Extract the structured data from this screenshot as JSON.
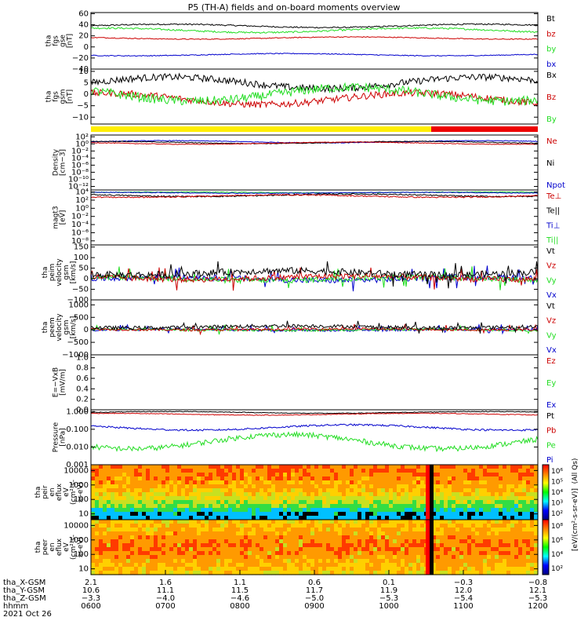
{
  "title": "P5 (TH-A) fields and on-board moments overview",
  "colors": {
    "black": "#000000",
    "red": "#cc0000",
    "green": "#22dd22",
    "blue": "#0000cc",
    "yellow": "#ffee00",
    "barred": "#ee0000"
  },
  "panels": [
    {
      "ylabel": [
        "tha",
        "fgs",
        "gse",
        "[nT]"
      ],
      "yticks": [
        "60",
        "40",
        "20",
        "0",
        "−20",
        "−40"
      ],
      "yvals": [
        60,
        40,
        20,
        0,
        -20,
        -40
      ],
      "ylim": [
        -40,
        62
      ],
      "log": false,
      "legend": [
        {
          "t": "Bt",
          "c": "black"
        },
        {
          "t": "bz",
          "c": "red"
        },
        {
          "t": "by",
          "c": "green"
        },
        {
          "t": "bx",
          "c": "blue"
        }
      ],
      "series": [
        {
          "c": "black",
          "base": 38,
          "amp": 3,
          "noise": 1.2
        },
        {
          "c": "green",
          "base": 30,
          "amp": 4,
          "noise": 1.5
        },
        {
          "c": "red",
          "base": 16,
          "amp": 2,
          "noise": 0.8
        },
        {
          "c": "blue",
          "base": -14,
          "amp": 2,
          "noise": 0.8
        }
      ]
    },
    {
      "ylabel": [
        "tha",
        "fgs",
        "gsm",
        "[nT]"
      ],
      "yticks": [
        "10",
        "5",
        "0",
        "−5",
        "−10"
      ],
      "yvals": [
        10,
        5,
        0,
        -5,
        -10
      ],
      "ylim": [
        -13,
        11
      ],
      "log": false,
      "legend": [
        {
          "t": "Bx",
          "c": "black"
        },
        {
          "t": "Bz",
          "c": "red"
        },
        {
          "t": "By",
          "c": "green"
        }
      ],
      "series": [
        {
          "c": "black",
          "base": 5,
          "amp": 2.5,
          "noise": 1.5
        },
        {
          "c": "red",
          "base": -2,
          "amp": 2.5,
          "noise": 1.5
        },
        {
          "c": "green",
          "base": 0,
          "amp": 3,
          "noise": 2
        }
      ]
    },
    {
      "ylabel": [
        "Density",
        "[cm−3]"
      ],
      "yticks": [
        "10²",
        "10⁰",
        "10⁻²",
        "10⁻⁴",
        "10⁻⁶",
        "10⁻⁸",
        "10⁻¹⁰",
        "10⁻¹²"
      ],
      "yvals": [
        2,
        0,
        -2,
        -4,
        -6,
        -8,
        -10,
        -12
      ],
      "ylim": [
        -13,
        2.5
      ],
      "log": true,
      "legend": [
        {
          "t": "Ne",
          "c": "red"
        },
        {
          "t": "Ni",
          "c": "black"
        },
        {
          "t": "Npot",
          "c": "blue"
        }
      ],
      "series": [
        {
          "c": "blue",
          "base": 0.6,
          "amp": 0.3,
          "noise": 0.1
        },
        {
          "c": "black",
          "base": 0.4,
          "amp": 0.3,
          "noise": 0.1
        },
        {
          "c": "red",
          "base": 0.2,
          "amp": 0.3,
          "noise": 0.1
        }
      ]
    },
    {
      "ylabel": [
        "magt3",
        "[eV]"
      ],
      "yticks": [
        "10⁴",
        "10²",
        "10⁰",
        "10⁻²",
        "10⁻⁴",
        "10⁻⁶",
        "10⁻⁸"
      ],
      "yvals": [
        4,
        2,
        0,
        -2,
        -4,
        -6,
        -8
      ],
      "ylim": [
        -9,
        4.5
      ],
      "log": true,
      "legend": [
        {
          "t": "Te⊥",
          "c": "red"
        },
        {
          "t": "Te||",
          "c": "black"
        },
        {
          "t": "Ti⊥",
          "c": "blue"
        },
        {
          "t": "Ti||",
          "c": "green"
        }
      ],
      "series": [
        {
          "c": "green",
          "base": 3.9,
          "amp": 0.1,
          "noise": 0.08
        },
        {
          "c": "blue",
          "base": 3.8,
          "amp": 0.1,
          "noise": 0.08
        },
        {
          "c": "black",
          "base": 3.2,
          "amp": 0.3,
          "noise": 0.15
        },
        {
          "c": "red",
          "base": 3.0,
          "amp": 0.3,
          "noise": 0.15
        }
      ]
    },
    {
      "ylabel": [
        "tha",
        "peim",
        "velocity",
        "gsm",
        "[km/s]"
      ],
      "yticks": [
        "150",
        "100",
        "50",
        "0",
        "−50",
        "−100"
      ],
      "yvals": [
        150,
        100,
        50,
        0,
        -50,
        -100
      ],
      "ylim": [
        -100,
        160
      ],
      "log": false,
      "legend": [
        {
          "t": "Vt",
          "c": "black"
        },
        {
          "t": "Vz",
          "c": "red"
        },
        {
          "t": "Vy",
          "c": "green"
        },
        {
          "t": "Vx",
          "c": "blue"
        }
      ],
      "series": [
        {
          "c": "blue",
          "base": 0,
          "amp": 8,
          "noise": 14
        },
        {
          "c": "green",
          "base": 0,
          "amp": 8,
          "noise": 14
        },
        {
          "c": "red",
          "base": 5,
          "amp": 8,
          "noise": 14
        },
        {
          "c": "black",
          "base": 28,
          "amp": 10,
          "noise": 16
        }
      ]
    },
    {
      "ylabel": [
        "tha",
        "peem",
        "velocity",
        "gsm",
        "[km/s]"
      ],
      "yticks": [
        "1000",
        "500",
        "0",
        "−500",
        "−1000"
      ],
      "yvals": [
        1000,
        500,
        0,
        -500,
        -1000
      ],
      "ylim": [
        -1000,
        1200
      ],
      "log": false,
      "legend": [
        {
          "t": "Vt",
          "c": "black"
        },
        {
          "t": "Vz",
          "c": "red"
        },
        {
          "t": "Vy",
          "c": "green"
        },
        {
          "t": "Vx",
          "c": "blue"
        }
      ],
      "series": [
        {
          "c": "blue",
          "base": 0,
          "amp": 20,
          "noise": 50
        },
        {
          "c": "green",
          "base": 0,
          "amp": 20,
          "noise": 50
        },
        {
          "c": "red",
          "base": 20,
          "amp": 20,
          "noise": 50
        },
        {
          "c": "black",
          "base": 120,
          "amp": 40,
          "noise": 70
        }
      ]
    },
    {
      "ylabel": [
        "E=−VxB",
        "[mV/m]"
      ],
      "yticks": [
        "1.0",
        "0.8",
        "0.6",
        "0.4",
        "0.2",
        "0.0"
      ],
      "yvals": [
        1.0,
        0.8,
        0.6,
        0.4,
        0.2,
        0.0
      ],
      "ylim": [
        0,
        1.05
      ],
      "log": false,
      "legend": [
        {
          "t": "Ez",
          "c": "red"
        },
        {
          "t": "Ey",
          "c": "green"
        },
        {
          "t": "Ex",
          "c": "blue"
        }
      ],
      "series": []
    },
    {
      "ylabel": [
        "Pressure",
        "[nPa]"
      ],
      "yticks": [
        "1.000",
        "0.100",
        "0.010",
        "0.001"
      ],
      "yvals": [
        0,
        -1,
        -2,
        -3
      ],
      "ylim": [
        -3,
        0.1
      ],
      "log": true,
      "legend": [
        {
          "t": "Pt",
          "c": "black"
        },
        {
          "t": "Pb",
          "c": "red"
        },
        {
          "t": "Pe",
          "c": "green"
        },
        {
          "t": "Pi",
          "c": "blue"
        }
      ],
      "series": [
        {
          "c": "black",
          "base": -0.05,
          "amp": 0.05,
          "noise": 0.02
        },
        {
          "c": "red",
          "base": -0.15,
          "amp": 0.05,
          "noise": 0.02
        },
        {
          "c": "blue",
          "base": -0.9,
          "amp": 0.15,
          "noise": 0.05
        },
        {
          "c": "green",
          "base": -1.7,
          "amp": 0.4,
          "noise": 0.15
        }
      ]
    },
    {
      "ylabel": [
        "tha",
        "peir",
        "en",
        "eflux",
        "eV",
        "(cm²-s-",
        "sr-eV)"
      ],
      "yticks": [
        "10000",
        "1000",
        "100",
        "10"
      ],
      "yvals": [
        4,
        3,
        2,
        1
      ],
      "ylim": [
        0.6,
        4.4
      ],
      "log": true,
      "spec": "ion",
      "legend": [],
      "series": []
    },
    {
      "ylabel": [
        "tha",
        "peer",
        "en",
        "eflux",
        "eV",
        "(cm²-s-",
        "sr-eV)"
      ],
      "yticks": [
        "10000",
        "1000",
        "100",
        "10"
      ],
      "yvals": [
        4,
        3,
        2,
        1
      ],
      "ylim": [
        0.6,
        4.4
      ],
      "log": true,
      "spec": "ele",
      "legend": [],
      "series": []
    }
  ],
  "colorbars": [
    {
      "ticks": [
        "10⁶",
        "10⁵",
        "10⁴",
        "10³",
        "10²"
      ]
    },
    {
      "ticks": [
        "10⁸",
        "10⁶",
        "10⁴",
        "10²"
      ]
    }
  ],
  "colorbar_label": "[eV/(cm²-s-sr-eV)]",
  "colorbar_label2": "(All Qs)",
  "xaxis": {
    "rows": [
      {
        "label": "tha_X-GSM",
        "vals": [
          "2.1",
          "1.6",
          "1.1",
          "0.6",
          "0.1",
          "−0.3",
          "−0.8"
        ]
      },
      {
        "label": "tha_Y-GSM",
        "vals": [
          "10.6",
          "11.1",
          "11.5",
          "11.7",
          "11.9",
          "12.0",
          "12.1"
        ]
      },
      {
        "label": "tha_Z-GSM",
        "vals": [
          "−3.3",
          "−4.0",
          "−4.6",
          "−5.0",
          "−5.3",
          "−5.4",
          "−5.3"
        ]
      },
      {
        "label": "hhmm",
        "vals": [
          "0600",
          "0700",
          "0800",
          "0900",
          "1000",
          "1100",
          "1200"
        ]
      }
    ],
    "date": "2021 Oct 26"
  }
}
